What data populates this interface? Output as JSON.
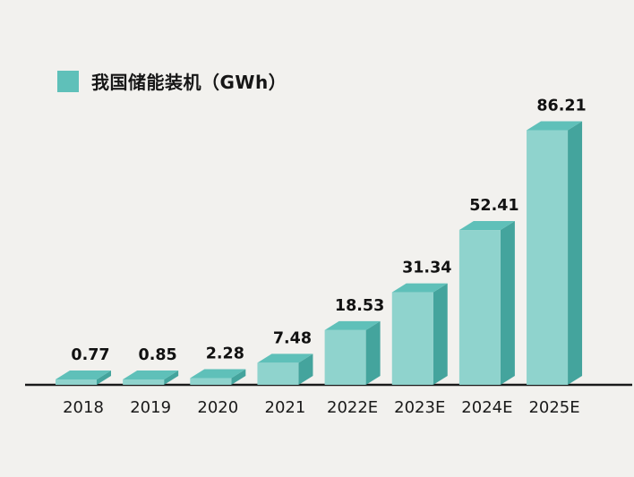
{
  "page": {
    "background_color": "#f2f1ee"
  },
  "legend": {
    "swatch_color": "#5fc0b9",
    "label": "我国储能装机（GWh）"
  },
  "chart_data": {
    "type": "bar",
    "title": "我国储能装机（GWh）",
    "categories": [
      "2018",
      "2019",
      "2020",
      "2021",
      "2022E",
      "2023E",
      "2024E",
      "2025E"
    ],
    "values": [
      0.77,
      0.85,
      2.28,
      7.48,
      18.53,
      31.34,
      52.41,
      86.21
    ],
    "xlabel": "",
    "ylabel": "GWh",
    "ylim": [
      0,
      90
    ],
    "grid": false,
    "legend_position": "top-left",
    "style": "3d-oblique-bars",
    "colors": {
      "front": "#8fd3cd",
      "top": "#5fc0b9",
      "side": "#44a49d",
      "axis": "#1a1a1a",
      "value_label": "#111111",
      "category_label": "#1a1a1a"
    }
  }
}
